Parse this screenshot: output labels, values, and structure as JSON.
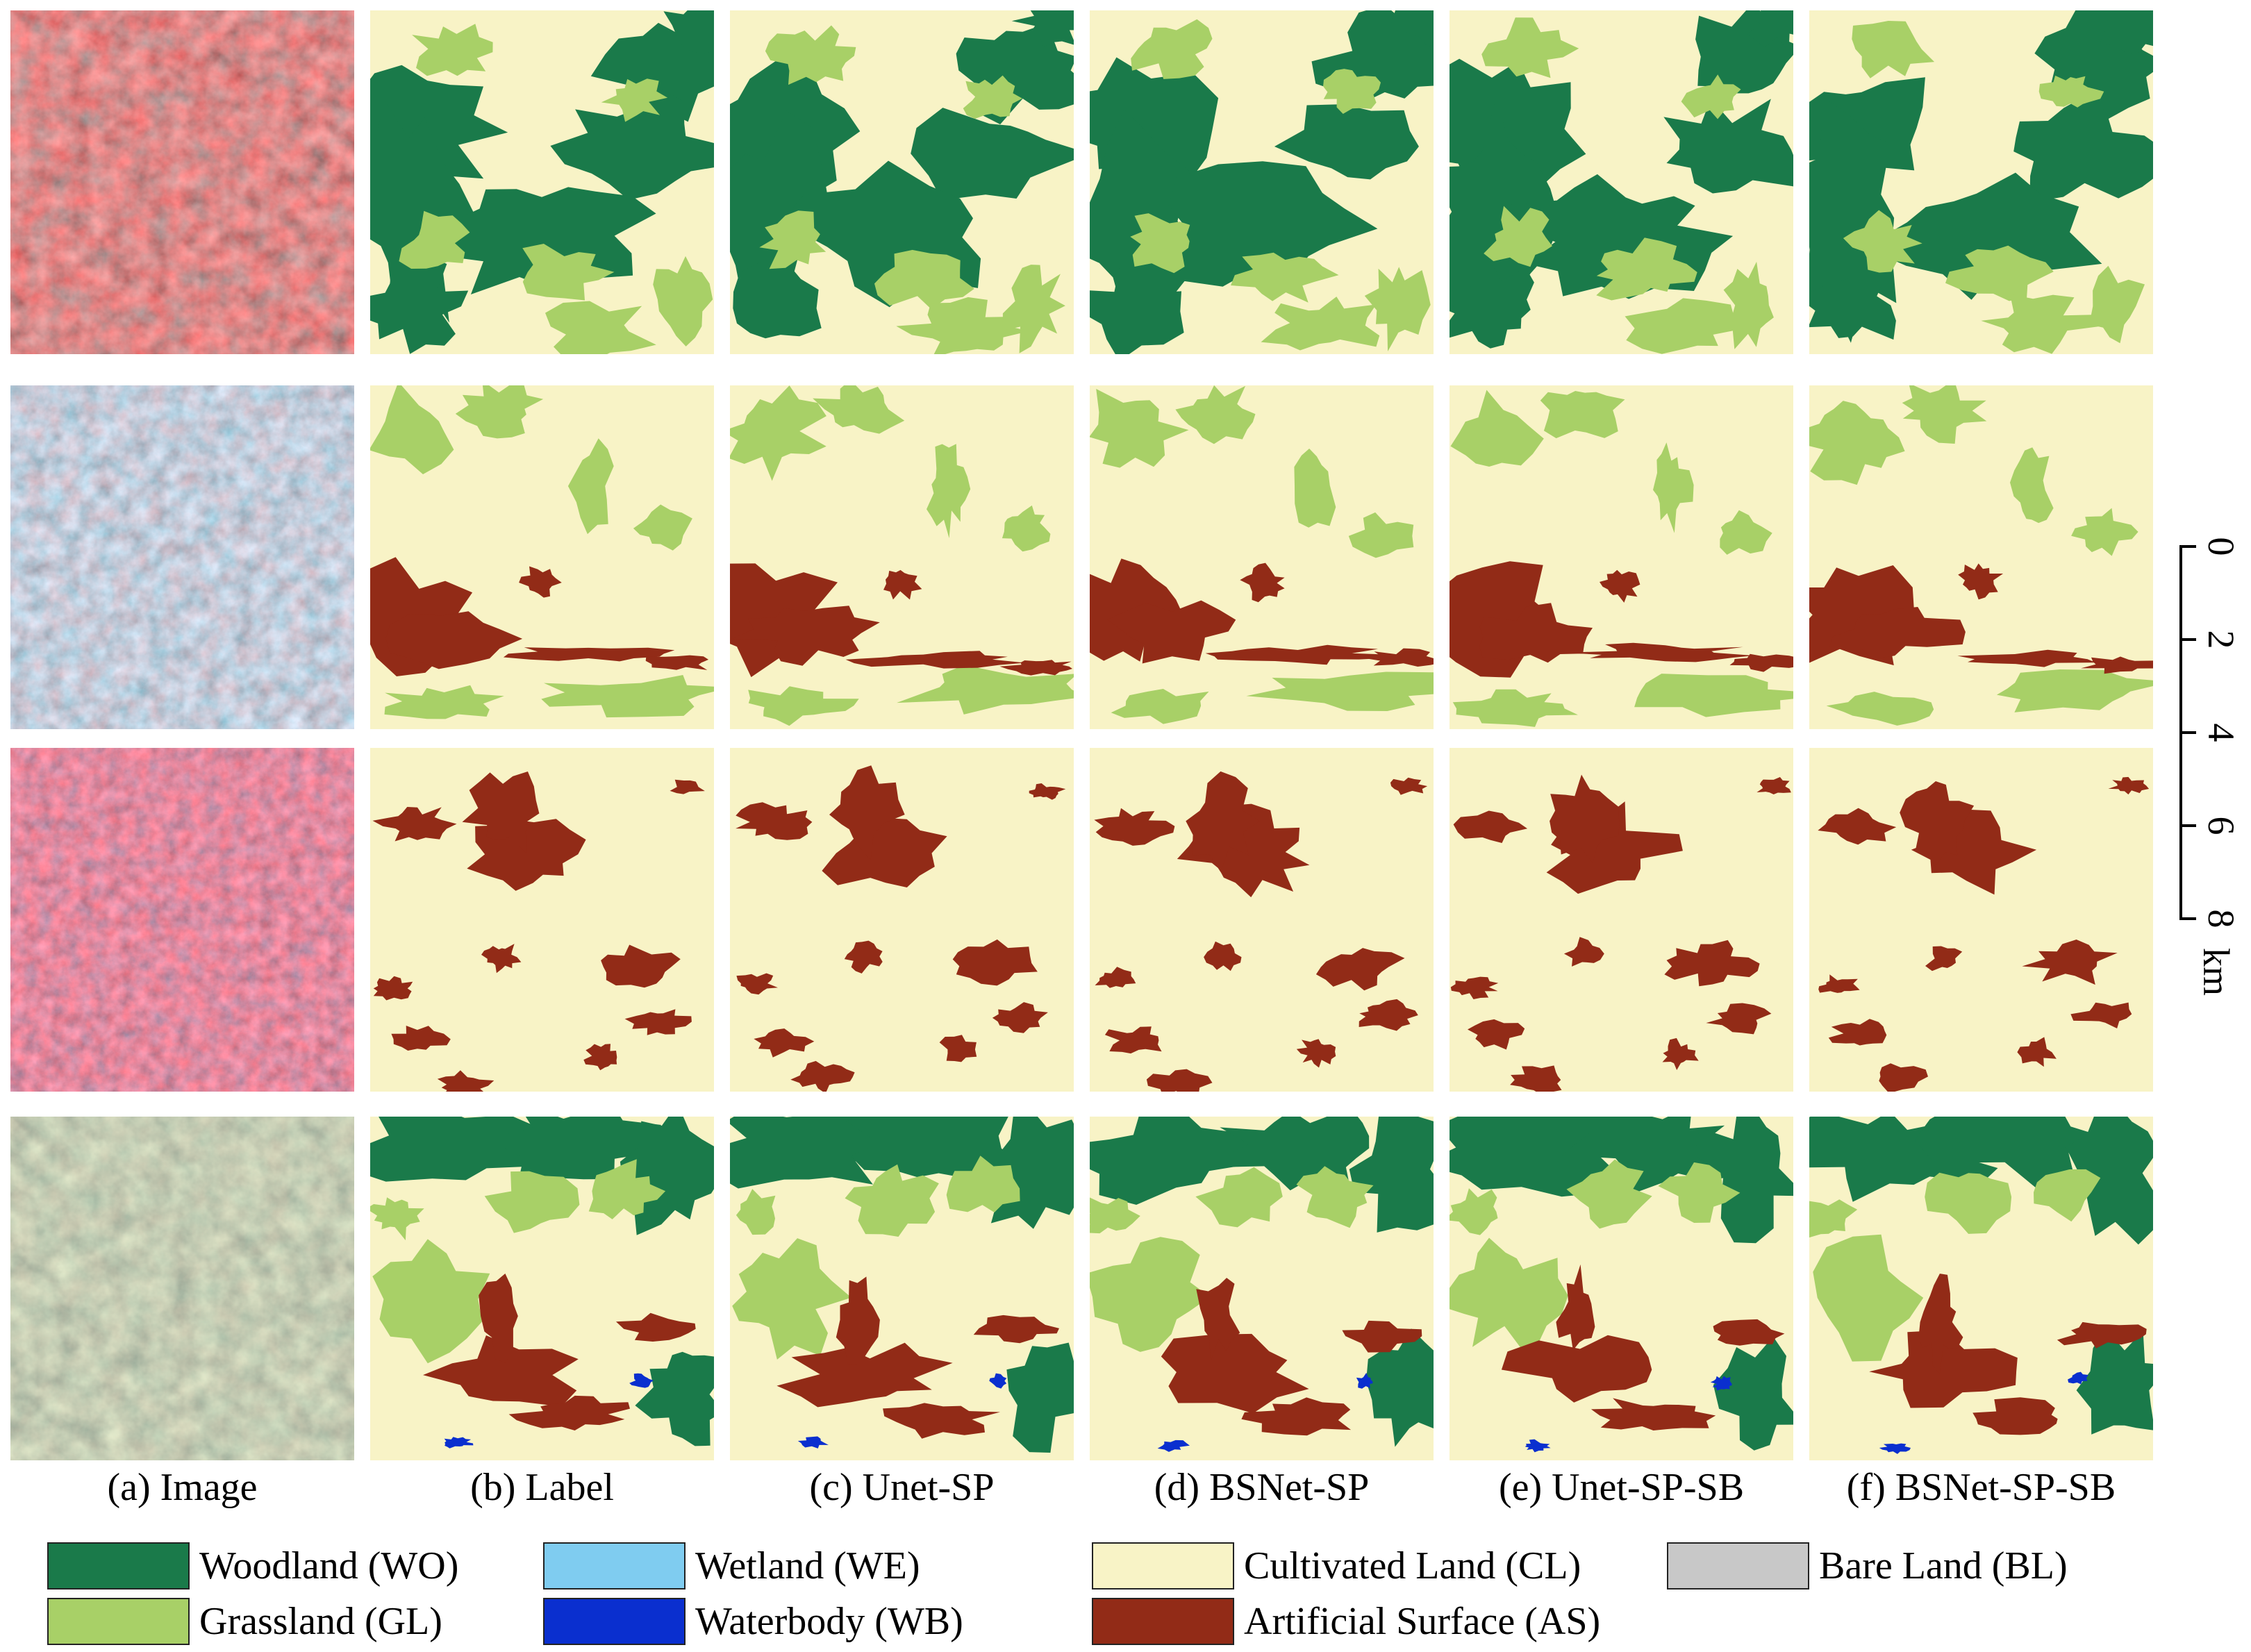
{
  "figure": {
    "columns": [
      {
        "id": "image",
        "caption": "(a) Image"
      },
      {
        "id": "label",
        "caption": "(b) Label"
      },
      {
        "id": "unet_sp",
        "caption": "(c) Unet-SP"
      },
      {
        "id": "bsnet_sp",
        "caption": "(d) BSNet-SP"
      },
      {
        "id": "unet_sp_sb",
        "caption": "(e) Unet-SP-SB"
      },
      {
        "id": "bsnet_sp_sb",
        "caption": "(f) BSNet-SP-SB"
      }
    ],
    "rows": 4
  },
  "scale_bar": {
    "ticks": [
      "0",
      "2",
      "4",
      "6",
      "8"
    ],
    "unit": "km"
  },
  "legend": [
    {
      "key": "WO",
      "label": "Woodland (WO)",
      "color": "#1a7a4a"
    },
    {
      "key": "GL",
      "label": "Grassland (GL)",
      "color": "#a8d067"
    },
    {
      "key": "WE",
      "label": "Wetland (WE)",
      "color": "#7fccf0"
    },
    {
      "key": "WB",
      "label": "Waterbody (WB)",
      "color": "#0a2fcf"
    },
    {
      "key": "CL",
      "label": "Cultivated Land (CL)",
      "color": "#f8f3c6"
    },
    {
      "key": "AS",
      "label": "Artificial Surface (AS)",
      "color": "#922b17"
    },
    {
      "key": "BL",
      "label": "Bare Land (BL)",
      "color": "#c8c8c8"
    }
  ]
}
